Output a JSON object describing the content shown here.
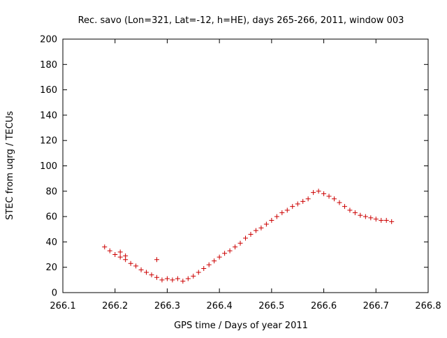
{
  "chart_data": {
    "type": "scatter",
    "title": "Rec. savo (Lon=321, Lat=-12, h=HE), days 265-266, 2011, window 003",
    "xlabel": "GPS time / Days of year 2011",
    "ylabel": "STEC from uqrg / TECUs",
    "xlim": [
      266.1,
      266.8
    ],
    "ylim": [
      0,
      200
    ],
    "xticks": [
      266.1,
      266.2,
      266.3,
      266.4,
      266.5,
      266.6,
      266.7,
      266.8
    ],
    "yticks": [
      0,
      20,
      40,
      60,
      80,
      100,
      120,
      140,
      160,
      180,
      200
    ],
    "xtick_labels": [
      "266.1",
      "266.2",
      "266.3",
      "266.4",
      "266.5",
      "266.6",
      "266.7",
      "266.8"
    ],
    "ytick_labels": [
      "0",
      "20",
      "40",
      "60",
      "80",
      "100",
      "120",
      "140",
      "160",
      "180",
      "200"
    ],
    "grid": false,
    "marker": "+",
    "marker_color": "#cc0000",
    "axis_color": "#000000",
    "series": [
      {
        "x": [
          266.18,
          266.19,
          266.2,
          266.21,
          266.21,
          266.22,
          266.22,
          266.23,
          266.24,
          266.25,
          266.26,
          266.27,
          266.28,
          266.28,
          266.29,
          266.3,
          266.31,
          266.32,
          266.33,
          266.34,
          266.35,
          266.36,
          266.37,
          266.38,
          266.39,
          266.4,
          266.41,
          266.42,
          266.43,
          266.44,
          266.45,
          266.46,
          266.47,
          266.48,
          266.49,
          266.5,
          266.51,
          266.52,
          266.53,
          266.54,
          266.55,
          266.56,
          266.57,
          266.58,
          266.59,
          266.6,
          266.61,
          266.62,
          266.63,
          266.64,
          266.65,
          266.66,
          266.67,
          266.68,
          266.69,
          266.7,
          266.71,
          266.72,
          266.73
        ],
        "y": [
          36,
          33,
          30,
          28,
          32,
          26,
          29,
          23,
          21,
          18,
          16,
          14,
          12,
          26,
          10,
          11,
          10,
          11,
          9,
          11,
          13,
          16,
          19,
          22,
          25,
          28,
          31,
          33,
          36,
          39,
          43,
          46,
          49,
          51,
          54,
          57,
          60,
          63,
          65,
          68,
          70,
          72,
          74,
          79,
          80,
          78,
          76,
          74,
          71,
          68,
          65,
          63,
          61,
          60,
          59,
          58,
          57,
          57,
          56
        ],
        "name": ""
      }
    ]
  }
}
